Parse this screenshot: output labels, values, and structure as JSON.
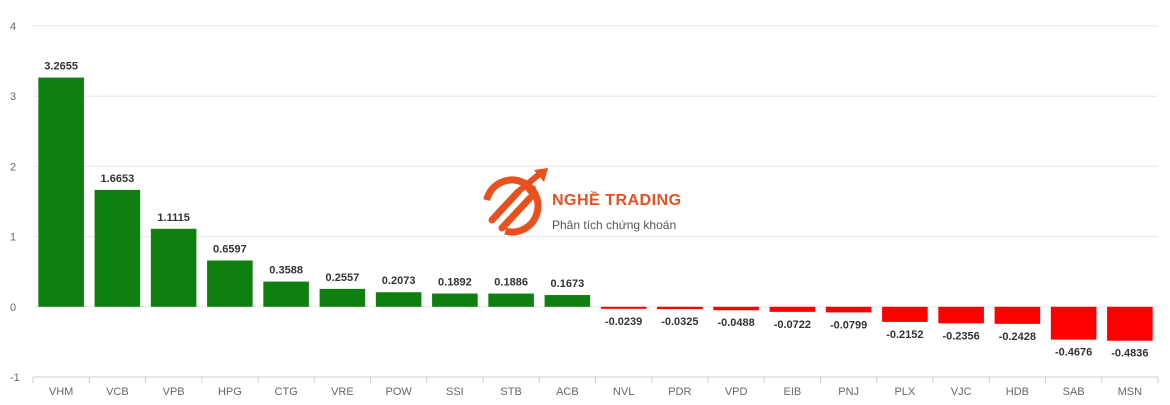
{
  "watermark": {
    "title": "NGHỀ TRADING",
    "subtitle": "Phân tích chứng khoán",
    "color": "#e8501e"
  },
  "colors": {
    "positive": "#0f7f0f",
    "negative": "#ff0000"
  },
  "chart_data": {
    "type": "bar",
    "title": "",
    "xlabel": "",
    "ylabel": "",
    "ylim": [
      -1,
      4
    ],
    "yticks": [
      -1,
      0,
      1,
      2,
      3,
      4
    ],
    "grid": true,
    "categories": [
      "VHM",
      "VCB",
      "VPB",
      "HPG",
      "CTG",
      "VRE",
      "POW",
      "SSI",
      "STB",
      "ACB",
      "NVL",
      "PDR",
      "VPD",
      "EIB",
      "PNJ",
      "PLX",
      "VJC",
      "HDB",
      "SAB",
      "MSN"
    ],
    "values": [
      3.2655,
      1.6653,
      1.1115,
      0.6597,
      0.3588,
      0.2557,
      0.2073,
      0.1892,
      0.1886,
      0.1673,
      -0.0239,
      -0.0325,
      -0.0488,
      -0.0722,
      -0.0799,
      -0.2152,
      -0.2356,
      -0.2428,
      -0.4676,
      -0.4836
    ],
    "labels": [
      "3.2655",
      "1.6653",
      "1.1115",
      "0.6597",
      "0.3588",
      "0.2557",
      "0.2073",
      "0.1892",
      "0.1886",
      "0.1673",
      "-0.0239",
      "-0.0325",
      "-0.0488",
      "-0.0722",
      "-0.0799",
      "-0.2152",
      "-0.2356",
      "-0.2428",
      "-0.4676",
      "-0.4836"
    ]
  }
}
